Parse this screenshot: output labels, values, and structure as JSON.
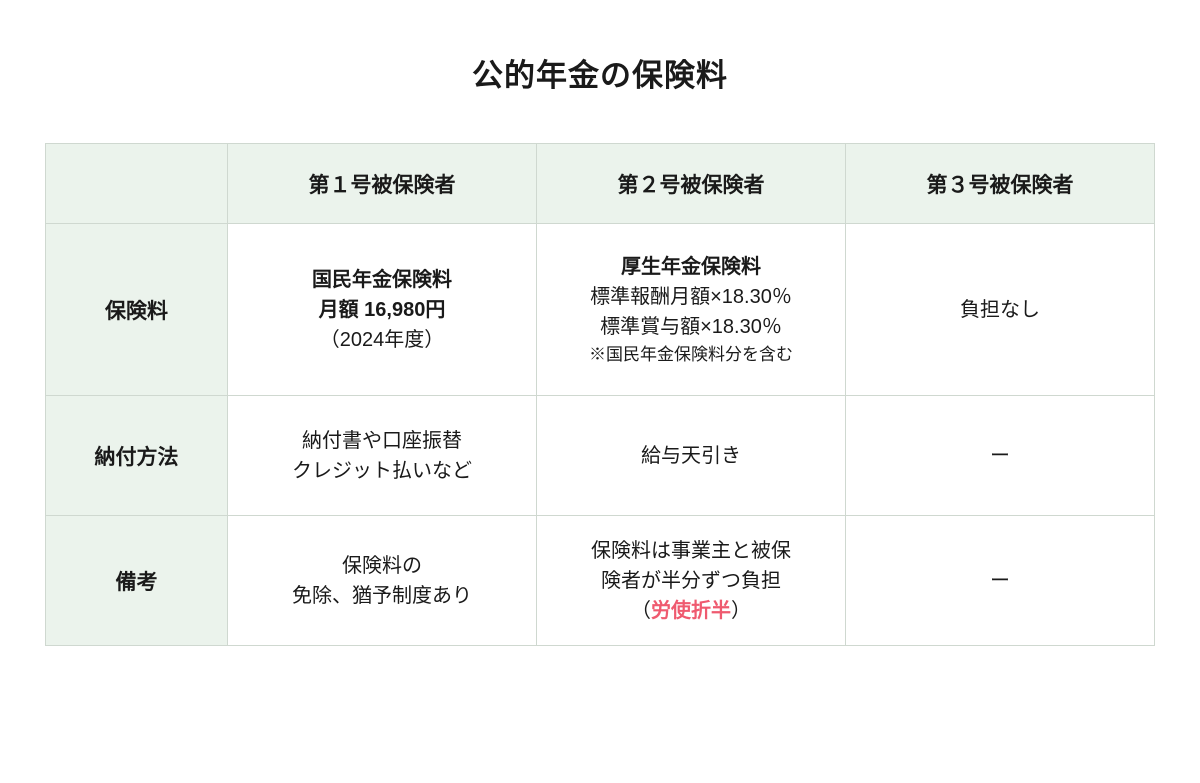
{
  "title": "公的年金の保険料",
  "table": {
    "header_background": "#ebf3ec",
    "border_color": "#cfd8d0",
    "text_color": "#1a1a1a",
    "highlight_color": "#ef5a6f",
    "columns": {
      "blank": "",
      "col1": "第１号被保険者",
      "col2": "第２号被保険者",
      "col3": "第３号被保険者"
    },
    "rows": {
      "premium": {
        "header": "保険料",
        "col1": {
          "line1_bold": "国民年金保険料",
          "line2_bold": "月額 16,980円",
          "line3": "（2024年度）"
        },
        "col2": {
          "line1_bold": "厚生年金保険料",
          "line2": "標準報酬月額×18.30％",
          "line3": "標準賞与額×18.30％",
          "line4_small": "※国民年金保険料分を含む"
        },
        "col3": "負担なし"
      },
      "method": {
        "header": "納付方法",
        "col1": {
          "line1": "納付書や口座振替",
          "line2": "クレジット払いなど"
        },
        "col2": "給与天引き",
        "col3": "ー"
      },
      "notes": {
        "header": "備考",
        "col1": {
          "line1": "保険料の",
          "line2": "免除、猶予制度あり"
        },
        "col2": {
          "line1": "保険料は事業主と被保",
          "line2": "険者が半分ずつ負担",
          "line3_prefix": "（",
          "line3_highlight": "労使折半",
          "line3_suffix": "）"
        },
        "col3": "ー"
      }
    }
  }
}
